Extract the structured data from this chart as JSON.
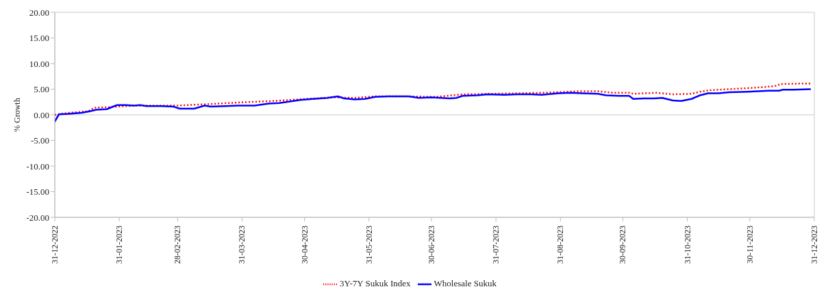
{
  "chart_data": {
    "type": "line",
    "ylabel": "% Growth",
    "ylim": [
      -20,
      20
    ],
    "yticks": [
      {
        "value": -20,
        "label": "-20.00"
      },
      {
        "value": -15,
        "label": "-15.00"
      },
      {
        "value": -10,
        "label": "-10.00"
      },
      {
        "value": -5,
        "label": "-5.00"
      },
      {
        "value": 0,
        "label": "0.00"
      },
      {
        "value": 5,
        "label": "5.00"
      },
      {
        "value": 10,
        "label": "10.00"
      },
      {
        "value": 15,
        "label": "15.00"
      },
      {
        "value": 20,
        "label": "20.00"
      }
    ],
    "xlim": [
      "2022-12-31",
      "2023-12-31"
    ],
    "xticks": [
      {
        "value": "2022-12-31",
        "label": "31-12-2022"
      },
      {
        "value": "2023-01-31",
        "label": "31-01-2023"
      },
      {
        "value": "2023-02-28",
        "label": "28-02-2023"
      },
      {
        "value": "2023-03-31",
        "label": "31-03-2023"
      },
      {
        "value": "2023-04-30",
        "label": "30-04-2023"
      },
      {
        "value": "2023-05-31",
        "label": "31-05-2023"
      },
      {
        "value": "2023-06-30",
        "label": "30-06-2023"
      },
      {
        "value": "2023-07-31",
        "label": "31-07-2023"
      },
      {
        "value": "2023-08-31",
        "label": "31-08-2023"
      },
      {
        "value": "2023-09-30",
        "label": "30-09-2023"
      },
      {
        "value": "2023-10-31",
        "label": "31-10-2023"
      },
      {
        "value": "2023-11-30",
        "label": "30-11-2023"
      },
      {
        "value": "2023-12-31",
        "label": "31-12-2023"
      }
    ],
    "grid": false,
    "legend": "bottom",
    "ref_lines": [
      {
        "axis": "y",
        "value": 0,
        "color": "#d9d9d9"
      }
    ],
    "series": [
      {
        "name": "3Y-7Y Sukuk Index",
        "color": "#ff0000",
        "line_style": "dotted",
        "x": [
          "2022-12-31",
          "2023-01-07",
          "2023-01-16",
          "2023-01-19",
          "2023-01-26",
          "2023-01-30",
          "2023-02-08",
          "2023-02-28",
          "2023-03-10",
          "2023-03-16",
          "2023-03-29",
          "2023-04-15",
          "2023-05-01",
          "2023-05-14",
          "2023-05-24",
          "2023-06-03",
          "2023-06-19",
          "2023-07-02",
          "2023-07-15",
          "2023-07-28",
          "2023-08-10",
          "2023-08-23",
          "2023-09-09",
          "2023-09-18",
          "2023-09-25",
          "2023-10-03",
          "2023-10-05",
          "2023-10-16",
          "2023-10-24",
          "2023-11-02",
          "2023-11-06",
          "2023-11-11",
          "2023-11-20",
          "2023-12-03",
          "2023-12-12",
          "2023-12-15",
          "2023-12-24",
          "2023-12-29"
        ],
        "values": [
          0.0,
          0.4,
          0.7,
          1.4,
          1.5,
          1.6,
          1.8,
          1.8,
          2.0,
          2.1,
          2.4,
          2.7,
          3.1,
          3.4,
          3.3,
          3.6,
          3.6,
          3.5,
          4.0,
          4.1,
          4.2,
          4.3,
          4.6,
          4.6,
          4.3,
          4.3,
          4.1,
          4.3,
          4.0,
          4.1,
          4.5,
          4.8,
          5.0,
          5.3,
          5.6,
          6.0,
          6.1,
          6.1
        ]
      },
      {
        "name": "Wholesale Sukuk",
        "color": "#0000ff",
        "line_style": "solid",
        "x": [
          "2022-12-31",
          "2023-01-02",
          "2023-01-07",
          "2023-01-13",
          "2023-01-17",
          "2023-01-20",
          "2023-01-25",
          "2023-01-28",
          "2023-01-30",
          "2023-02-03",
          "2023-02-07",
          "2023-02-10",
          "2023-02-13",
          "2023-02-20",
          "2023-02-26",
          "2023-03-01",
          "2023-03-08",
          "2023-03-13",
          "2023-03-16",
          "2023-03-23",
          "2023-03-29",
          "2023-04-06",
          "2023-04-13",
          "2023-04-18",
          "2023-04-23",
          "2023-04-28",
          "2023-05-04",
          "2023-05-11",
          "2023-05-16",
          "2023-05-19",
          "2023-05-24",
          "2023-05-29",
          "2023-06-03",
          "2023-06-09",
          "2023-06-19",
          "2023-06-24",
          "2023-06-30",
          "2023-07-09",
          "2023-07-12",
          "2023-07-15",
          "2023-07-22",
          "2023-07-27",
          "2023-08-04",
          "2023-08-10",
          "2023-08-17",
          "2023-08-22",
          "2023-08-30",
          "2023-09-05",
          "2023-09-10",
          "2023-09-18",
          "2023-09-22",
          "2023-09-28",
          "2023-10-03",
          "2023-10-05",
          "2023-10-10",
          "2023-10-15",
          "2023-10-19",
          "2023-10-24",
          "2023-10-28",
          "2023-11-02",
          "2023-11-06",
          "2023-11-10",
          "2023-11-15",
          "2023-11-20",
          "2023-11-29",
          "2023-12-09",
          "2023-12-14",
          "2023-12-16",
          "2023-12-21",
          "2023-12-29"
        ],
        "values": [
          -1.3,
          0.1,
          0.2,
          0.4,
          0.7,
          1.0,
          1.1,
          1.6,
          1.9,
          1.9,
          1.8,
          1.9,
          1.7,
          1.7,
          1.6,
          1.2,
          1.2,
          1.8,
          1.6,
          1.7,
          1.8,
          1.8,
          2.2,
          2.3,
          2.6,
          2.9,
          3.1,
          3.3,
          3.6,
          3.2,
          3.0,
          3.1,
          3.5,
          3.6,
          3.6,
          3.3,
          3.4,
          3.2,
          3.3,
          3.7,
          3.8,
          4.0,
          3.9,
          4.0,
          4.0,
          3.9,
          4.2,
          4.3,
          4.2,
          4.1,
          3.8,
          3.7,
          3.7,
          3.1,
          3.2,
          3.2,
          3.3,
          2.8,
          2.7,
          3.1,
          3.8,
          4.2,
          4.2,
          4.4,
          4.5,
          4.7,
          4.7,
          4.9,
          4.9,
          5.0
        ]
      }
    ]
  }
}
